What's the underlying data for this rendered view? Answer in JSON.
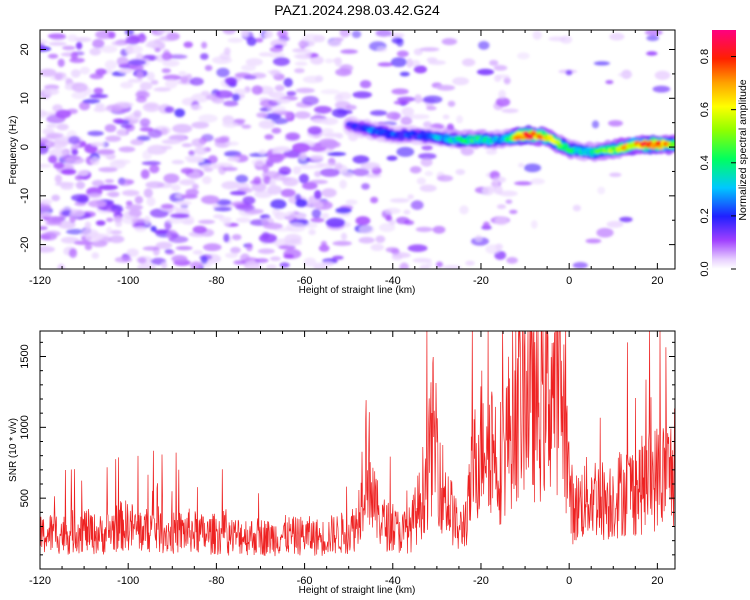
{
  "chart_data": [
    {
      "type": "heatmap",
      "title": "PAZ1.2024.298.03.42.G24",
      "xlabel": "Height of straight line (km)",
      "ylabel": "Frequency (Hz)",
      "xlim": [
        -120,
        24
      ],
      "ylim": [
        -25,
        24
      ],
      "x_ticks": [
        -120,
        -100,
        -80,
        -60,
        -40,
        -20,
        0,
        20
      ],
      "y_ticks": [
        -20,
        -10,
        0,
        10,
        20
      ],
      "colormap": "rainbow (purple-blue-cyan-green-yellow-red)",
      "colorbar": {
        "label": "Normalized spectral amplitude",
        "range": [
          0,
          0.9
        ],
        "ticks": [
          0.0,
          0.2,
          0.4,
          0.6,
          0.8
        ]
      },
      "signal_track": {
        "description": "bright ridge near 0 Hz from about -50 km to 24 km",
        "x": [
          -50,
          -45,
          -40,
          -35,
          -30,
          -25,
          -20,
          -15,
          -10,
          -5,
          0,
          5,
          10,
          15,
          20,
          24
        ],
        "frequency": [
          4.5,
          3.5,
          2.5,
          2.5,
          2.0,
          1.5,
          1.5,
          1.5,
          2.5,
          2.0,
          -0.5,
          -1.0,
          -0.5,
          0.5,
          0.5,
          0.5
        ],
        "amplitude": [
          0.15,
          0.25,
          0.22,
          0.2,
          0.28,
          0.35,
          0.4,
          0.25,
          0.85,
          0.6,
          0.4,
          0.35,
          0.5,
          0.7,
          0.75,
          0.55
        ]
      }
    },
    {
      "type": "line",
      "xlabel": "Height of straight line (km)",
      "ylabel": "SNR (10 * v/v)",
      "xlim": [
        -120,
        24
      ],
      "ylim": [
        0,
        1680
      ],
      "x_ticks": [
        -120,
        -100,
        -80,
        -60,
        -40,
        -20,
        0,
        20
      ],
      "y_ticks": [
        500,
        1000,
        1500
      ],
      "color": "#ee2222",
      "series": [
        {
          "x": [
            -120,
            -118,
            -116,
            -114,
            -112,
            -110,
            -108,
            -106,
            -104,
            -102,
            -100,
            -98,
            -96,
            -94,
            -92,
            -90,
            -88,
            -86,
            -84,
            -82,
            -80,
            -78,
            -76,
            -74,
            -72,
            -70,
            -68,
            -66,
            -64,
            -62,
            -60,
            -58,
            -56,
            -54,
            -52,
            -50,
            -48,
            -47,
            -46,
            -45,
            -44,
            -42,
            -40,
            -38,
            -36,
            -34,
            -32,
            -31,
            -30,
            -29,
            -28,
            -26,
            -25,
            -24,
            -23,
            -22,
            -21,
            -20,
            -19,
            -18,
            -17,
            -16,
            -15,
            -14,
            -13,
            -12,
            -11,
            -10,
            -9,
            -8,
            -7,
            -6,
            -5,
            -4,
            -3,
            -2,
            -1,
            0,
            1,
            2,
            4,
            6,
            8,
            10,
            12,
            14,
            16,
            18,
            20,
            22,
            24
          ],
          "values": [
            230,
            250,
            260,
            240,
            270,
            280,
            250,
            240,
            270,
            300,
            310,
            280,
            270,
            290,
            260,
            250,
            260,
            270,
            250,
            240,
            250,
            240,
            230,
            240,
            230,
            230,
            220,
            230,
            240,
            230,
            240,
            230,
            220,
            240,
            250,
            260,
            320,
            600,
            850,
            650,
            420,
            320,
            280,
            260,
            280,
            450,
            700,
            950,
            900,
            600,
            520,
            350,
            250,
            320,
            400,
            650,
            800,
            900,
            1000,
            950,
            850,
            750,
            800,
            950,
            1050,
            1150,
            1200,
            1300,
            1250,
            1150,
            1100,
            1200,
            1250,
            1280,
            1300,
            1250,
            1100,
            600,
            400,
            450,
            500,
            520,
            480,
            500,
            550,
            560,
            580,
            620,
            650,
            680,
            690
          ]
        }
      ]
    }
  ]
}
